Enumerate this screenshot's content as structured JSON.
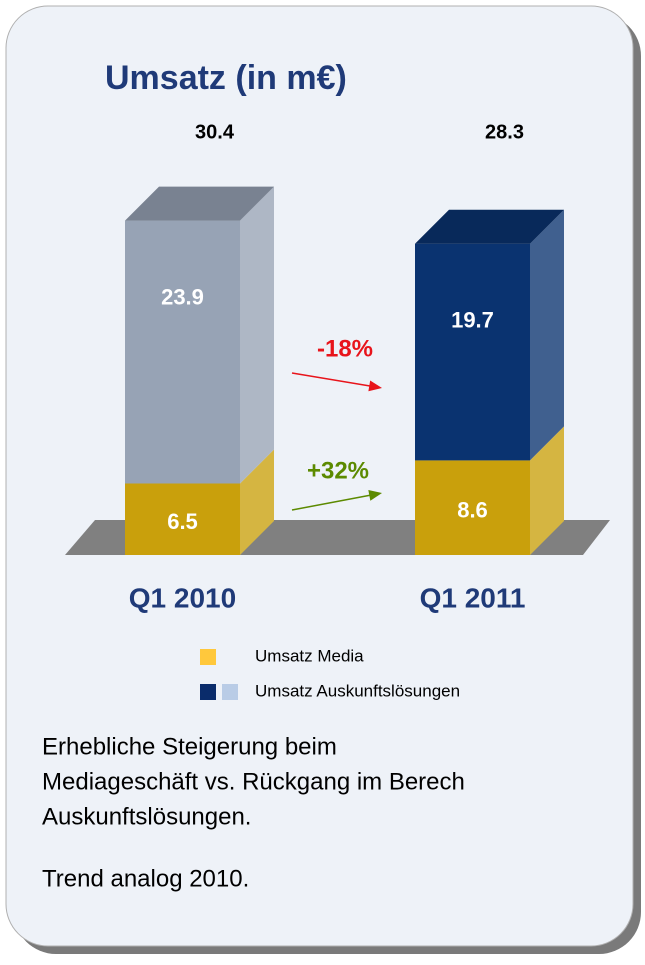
{
  "chart_data": {
    "type": "stacked_bar_3d",
    "title": "Umsatz (in m€)",
    "categories": [
      "Q1 2010",
      "Q1 2011"
    ],
    "totals": [
      30.4,
      28.3
    ],
    "series": [
      {
        "name": "Umsatz Media",
        "legend_colors": [
          "#ffc83c"
        ],
        "colors": [
          "#c9a00c",
          "#c9a00c"
        ],
        "values": [
          6.5,
          8.6
        ]
      },
      {
        "name": "Umsatz Auskunftslösungen",
        "legend_colors": [
          "#0a2c6b",
          "#b9cce6"
        ],
        "colors": [
          "#97a3b5",
          "#0a3370"
        ],
        "values": [
          23.9,
          19.7
        ]
      }
    ],
    "annotations": [
      {
        "text": "-18%",
        "color": "#e8141b"
      },
      {
        "text": "+32%",
        "color": "#5c8a00"
      }
    ],
    "notes": [
      "Erhebliche Steigerung beim",
      "Mediageschäft vs. Rückgang im Berech",
      "Auskunftslösungen.",
      "Trend analog 2010."
    ]
  }
}
